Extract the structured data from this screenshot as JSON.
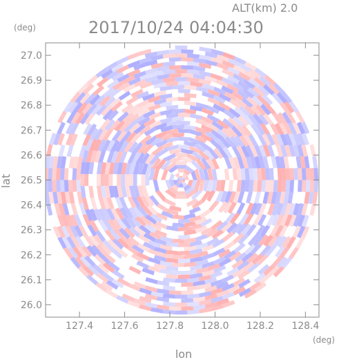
{
  "chart_data": {
    "type": "heatmap",
    "altitude_label": "ALT(km) 2.0",
    "timestamp": "2017/10/24 04:04:30",
    "xlabel": "lon",
    "ylabel": "lat",
    "x_unit": "(deg)",
    "y_unit": "(deg)",
    "xlim": [
      127.25,
      128.46
    ],
    "ylim": [
      25.95,
      27.05
    ],
    "x_ticks": [
      127.4,
      127.6,
      127.8,
      128.0,
      128.2,
      128.4
    ],
    "x_tick_labels": [
      "127.4",
      "127.6",
      "127.8",
      "128.0",
      "128.2",
      "128.4"
    ],
    "y_ticks": [
      26.0,
      26.1,
      26.2,
      26.3,
      26.4,
      26.5,
      26.6,
      26.7,
      26.8,
      26.9,
      27.0
    ],
    "y_tick_labels": [
      "26.0",
      "26.1",
      "26.2",
      "26.3",
      "26.4",
      "26.5",
      "26.6",
      "26.7",
      "26.8",
      "26.9",
      "27.0"
    ],
    "radar_center": {
      "lon": 127.85,
      "lat": 26.5
    },
    "radar_range_lat": 0.54,
    "colors": {
      "positive": "#ff8c8c",
      "negative": "#8c8cff",
      "axis": "#8a8a8a",
      "background": "#ffffff"
    }
  }
}
